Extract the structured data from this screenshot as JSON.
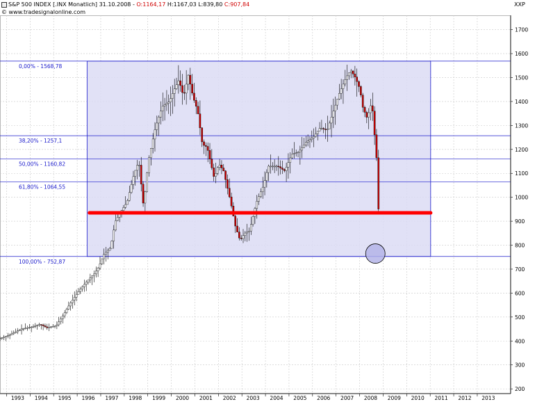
{
  "header": {
    "symbol": "S&P 500 INDEX [.INX Monatlich] 31.10.2008",
    "open": "O:1164,17",
    "high": "H:1167,03",
    "low": "L:839,80",
    "close": "C:907,84",
    "watermark": "© www.tradesignalonline.com",
    "unit": "XXP"
  },
  "chart_data": {
    "type": "candlestick",
    "title": "S&P 500 INDEX [.INX Monatlich] 31.10.2008",
    "ylim": [
      180,
      1760
    ],
    "xlim": [
      1992.6,
      2014.3
    ],
    "y_ticks": [
      1700,
      1600,
      1500,
      1400,
      1300,
      1200,
      1100,
      1000,
      900,
      800,
      700,
      600,
      500,
      400,
      300,
      200
    ],
    "x_ticks": [
      "1993",
      "1994",
      "1995",
      "1996",
      "1997",
      "1998",
      "1999",
      "2000",
      "2001",
      "2002",
      "2003",
      "2004",
      "2005",
      "2006",
      "2007",
      "2008",
      "2009",
      "2010",
      "2011",
      "2012",
      "2013"
    ],
    "grid": true,
    "fib_rectangle": {
      "x_start": 1996.3,
      "x_end": 2010.9,
      "y_low": 752.87,
      "y_high": 1568.78,
      "fill": "#dcdcf5",
      "stroke": "#1a1acc"
    },
    "fib_levels": [
      {
        "label": "0,00% - 1568,78",
        "value": 1568.78
      },
      {
        "label": "38,20% - 1257,1",
        "value": 1257.1
      },
      {
        "label": "50,00% - 1160,82",
        "value": 1160.82
      },
      {
        "label": "61,80% - 1064,55",
        "value": 1064.55
      },
      {
        "label": "100,00% - 752,87",
        "value": 752.87
      }
    ],
    "support_line": {
      "value": 935,
      "x_start": 1996.4,
      "x_end": 2010.9,
      "color": "#ff0000"
    },
    "circle_marker": {
      "x": 2008.55,
      "y": 765,
      "color": "#b4b4e8"
    },
    "price_path": [
      [
        1992.6,
        410
      ],
      [
        1993.0,
        425
      ],
      [
        1993.5,
        450
      ],
      [
        1994.0,
        460
      ],
      [
        1994.3,
        470
      ],
      [
        1994.6,
        455
      ],
      [
        1995.0,
        465
      ],
      [
        1995.3,
        510
      ],
      [
        1995.6,
        560
      ],
      [
        1996.0,
        615
      ],
      [
        1996.3,
        650
      ],
      [
        1996.6,
        680
      ],
      [
        1996.8,
        710
      ],
      [
        1997.0,
        760
      ],
      [
        1997.3,
        790
      ],
      [
        1997.5,
        900
      ],
      [
        1997.8,
        950
      ],
      [
        1998.0,
        980
      ],
      [
        1998.3,
        1100
      ],
      [
        1998.5,
        1150
      ],
      [
        1998.7,
        960
      ],
      [
        1998.9,
        1150
      ],
      [
        1999.2,
        1290
      ],
      [
        1999.5,
        1380
      ],
      [
        1999.8,
        1400
      ],
      [
        2000.0,
        1450
      ],
      [
        2000.2,
        1490
      ],
      [
        2000.4,
        1420
      ],
      [
        2000.6,
        1510
      ],
      [
        2000.8,
        1420
      ],
      [
        2001.0,
        1360
      ],
      [
        2001.2,
        1220
      ],
      [
        2001.4,
        1210
      ],
      [
        2001.7,
        1080
      ],
      [
        2001.9,
        1140
      ],
      [
        2002.1,
        1110
      ],
      [
        2002.4,
        980
      ],
      [
        2002.6,
        880
      ],
      [
        2002.8,
        820
      ],
      [
        2003.0,
        850
      ],
      [
        2003.2,
        860
      ],
      [
        2003.5,
        980
      ],
      [
        2003.8,
        1050
      ],
      [
        2004.0,
        1130
      ],
      [
        2004.4,
        1130
      ],
      [
        2004.7,
        1110
      ],
      [
        2005.0,
        1180
      ],
      [
        2005.3,
        1190
      ],
      [
        2005.6,
        1230
      ],
      [
        2005.9,
        1250
      ],
      [
        2006.2,
        1290
      ],
      [
        2006.5,
        1280
      ],
      [
        2006.8,
        1370
      ],
      [
        2007.0,
        1430
      ],
      [
        2007.3,
        1500
      ],
      [
        2007.5,
        1530
      ],
      [
        2007.7,
        1500
      ],
      [
        2007.9,
        1450
      ],
      [
        2008.0,
        1380
      ],
      [
        2008.2,
        1330
      ],
      [
        2008.4,
        1400
      ],
      [
        2008.5,
        1280
      ],
      [
        2008.6,
        1165
      ],
      [
        2008.7,
        908
      ]
    ]
  }
}
